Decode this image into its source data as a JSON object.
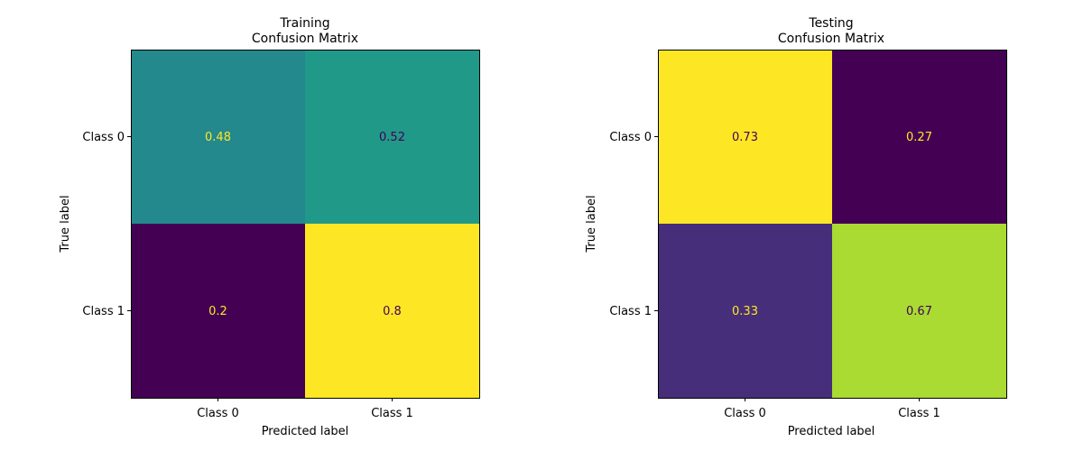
{
  "chart_data": [
    {
      "type": "heatmap",
      "title_line1": "Training",
      "title_line2": "Confusion Matrix",
      "xlabel": "Predicted label",
      "ylabel": "True label",
      "x_categories": [
        "Class 0",
        "Class 1"
      ],
      "y_categories": [
        "Class 0",
        "Class 1"
      ],
      "values": [
        [
          0.48,
          0.52
        ],
        [
          0.2,
          0.8
        ]
      ],
      "value_labels": [
        [
          "0.48",
          "0.52"
        ],
        [
          "0.2",
          "0.8"
        ]
      ],
      "colormap": "viridis",
      "colorbar": false
    },
    {
      "type": "heatmap",
      "title_line1": "Testing",
      "title_line2": "Confusion Matrix",
      "xlabel": "Predicted label",
      "ylabel": "True label",
      "x_categories": [
        "Class 0",
        "Class 1"
      ],
      "y_categories": [
        "Class 0",
        "Class 1"
      ],
      "values": [
        [
          0.73,
          0.27
        ],
        [
          0.33,
          0.67
        ]
      ],
      "value_labels": [
        [
          "0.73",
          "0.27"
        ],
        [
          "0.33",
          "0.67"
        ]
      ],
      "colormap": "viridis",
      "colorbar": false
    }
  ],
  "colors": {
    "text_on_dark": "#fde725",
    "text_on_light": "#440154"
  }
}
